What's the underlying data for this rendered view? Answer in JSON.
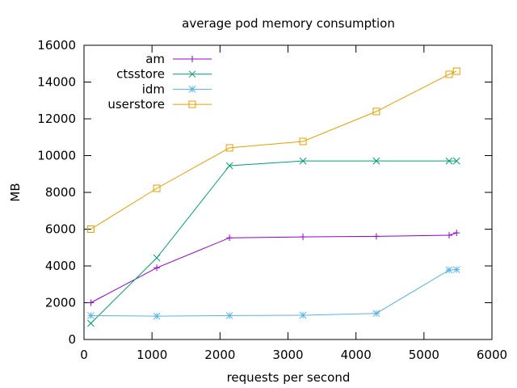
{
  "chart_data": {
    "type": "line",
    "title": "average pod memory consumption",
    "xlabel": "requests per second",
    "ylabel": "MB",
    "xlim": [
      0,
      6000
    ],
    "ylim": [
      0,
      16000
    ],
    "xticks": [
      0,
      1000,
      2000,
      3000,
      4000,
      5000,
      6000
    ],
    "yticks": [
      0,
      2000,
      4000,
      6000,
      8000,
      10000,
      12000,
      14000,
      16000
    ],
    "xtick_labels": [
      "0",
      "1000",
      "2000",
      "3000",
      "4000",
      "5000",
      "6000"
    ],
    "ytick_labels": [
      "0",
      "2000",
      "4000",
      "6000",
      "8000",
      "10000",
      "12000",
      "14000",
      "16000"
    ],
    "grid": false,
    "legend_position": "top-left",
    "series": [
      {
        "name": "am",
        "color": "#9400d3",
        "marker": "plus",
        "x": [
          100,
          1070,
          2140,
          3220,
          4300,
          5370,
          5480
        ],
        "y": [
          2000,
          3900,
          5530,
          5580,
          5610,
          5670,
          5800
        ]
      },
      {
        "name": "ctsstore",
        "color": "#009e73",
        "marker": "cross",
        "x": [
          100,
          1070,
          2140,
          3220,
          4300,
          5370,
          5480
        ],
        "y": [
          880,
          4440,
          9450,
          9710,
          9710,
          9710,
          9710
        ]
      },
      {
        "name": "idm",
        "color": "#56b4e9",
        "marker": "star",
        "x": [
          100,
          1070,
          2140,
          3220,
          4300,
          5370,
          5480
        ],
        "y": [
          1300,
          1270,
          1300,
          1320,
          1420,
          3780,
          3800
        ]
      },
      {
        "name": "userstore",
        "color": "#e69f00",
        "marker": "square",
        "x": [
          100,
          1070,
          2140,
          3220,
          4300,
          5370,
          5480
        ],
        "y": [
          6000,
          8220,
          10420,
          10770,
          12400,
          14420,
          14590
        ]
      }
    ]
  }
}
